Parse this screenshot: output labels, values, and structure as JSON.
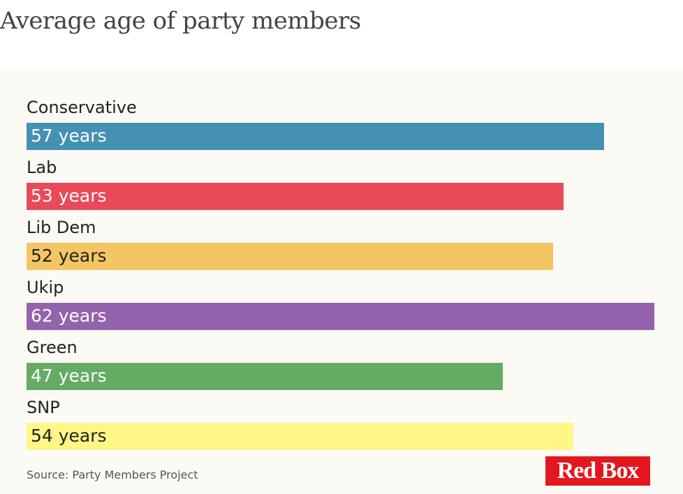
{
  "chart_data": {
    "type": "bar",
    "orientation": "horizontal",
    "title": "Average age of party members",
    "xlabel": "",
    "ylabel": "",
    "unit": "years",
    "categories": [
      "Conservative",
      "Lab",
      "Lib Dem",
      "Ukip",
      "Green",
      "SNP"
    ],
    "values": [
      57,
      53,
      52,
      62,
      47,
      54
    ],
    "value_labels": [
      "57 years",
      "53 years",
      "52 years",
      "62 years",
      "47 years",
      "54 years"
    ],
    "colors": [
      "#4491b2",
      "#e84a5a",
      "#f4c563",
      "#9463ad",
      "#65ab64",
      "#fef788"
    ],
    "label_dark": [
      false,
      false,
      true,
      false,
      false,
      true
    ],
    "xlim": [
      0,
      62
    ],
    "grid": false,
    "legend": "none",
    "source": "Source: Party Members Project"
  },
  "branding": {
    "logo_text": "Red Box",
    "logo_color": "#e3171d"
  }
}
